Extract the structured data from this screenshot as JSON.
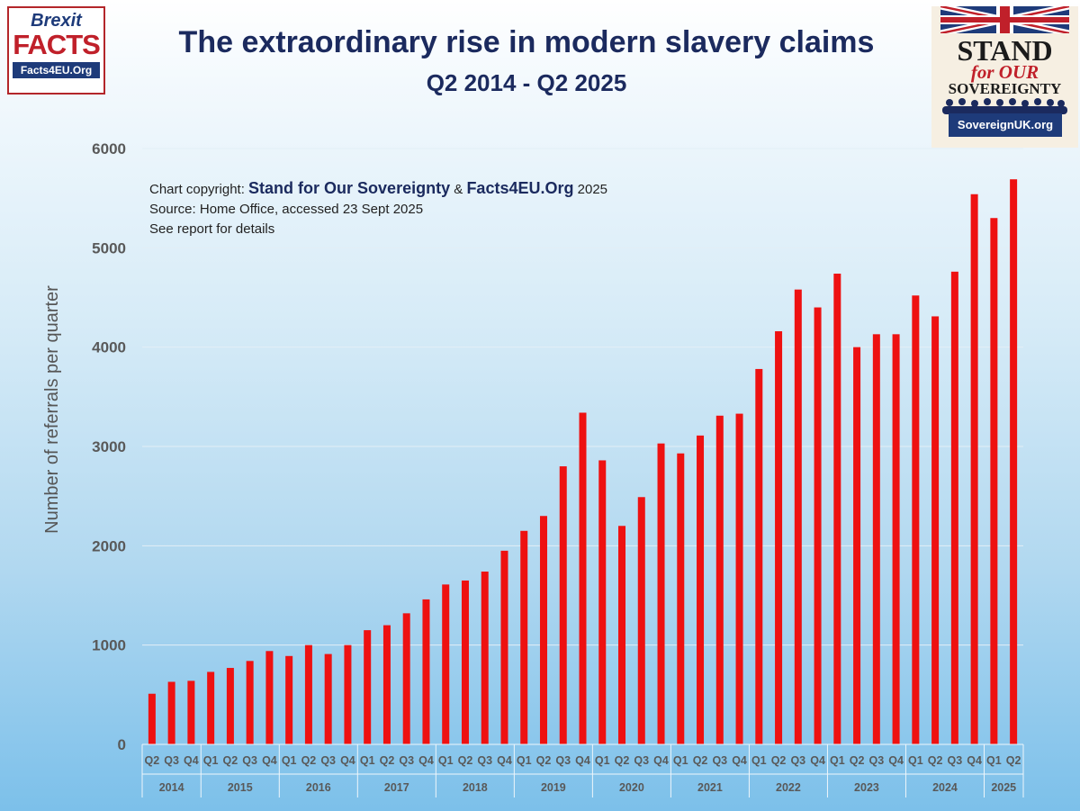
{
  "chart_data": {
    "type": "bar",
    "title": "The extraordinary rise in modern slavery claims",
    "subtitle": "Q2 2014 - Q2 2025",
    "ylabel": "Number of referrals per quarter",
    "xlabel": "",
    "ylim": [
      0,
      6000
    ],
    "yticks": [
      0,
      1000,
      2000,
      3000,
      4000,
      5000,
      6000
    ],
    "grid": true,
    "bar_color": "#ee1111",
    "categories": [
      "Q2",
      "Q3",
      "Q4",
      "Q1",
      "Q2",
      "Q3",
      "Q4",
      "Q1",
      "Q2",
      "Q3",
      "Q4",
      "Q1",
      "Q2",
      "Q3",
      "Q4",
      "Q1",
      "Q2",
      "Q3",
      "Q4",
      "Q1",
      "Q2",
      "Q3",
      "Q4",
      "Q1",
      "Q2",
      "Q3",
      "Q4",
      "Q1",
      "Q2",
      "Q3",
      "Q4",
      "Q1",
      "Q2",
      "Q3",
      "Q4",
      "Q1",
      "Q2",
      "Q3",
      "Q4",
      "Q1",
      "Q2",
      "Q3",
      "Q4",
      "Q1",
      "Q2"
    ],
    "years": [
      {
        "label": "2014",
        "count": 3
      },
      {
        "label": "2015",
        "count": 4
      },
      {
        "label": "2016",
        "count": 4
      },
      {
        "label": "2017",
        "count": 4
      },
      {
        "label": "2018",
        "count": 4
      },
      {
        "label": "2019",
        "count": 4
      },
      {
        "label": "2020",
        "count": 4
      },
      {
        "label": "2021",
        "count": 4
      },
      {
        "label": "2022",
        "count": 4
      },
      {
        "label": "2023",
        "count": 4
      },
      {
        "label": "2024",
        "count": 4
      },
      {
        "label": "2025",
        "count": 2
      }
    ],
    "values": [
      510,
      630,
      640,
      730,
      770,
      840,
      940,
      890,
      1000,
      910,
      1000,
      1150,
      1200,
      1320,
      1460,
      1610,
      1650,
      1740,
      1950,
      2150,
      2300,
      2800,
      3340,
      2860,
      2200,
      2490,
      3030,
      2930,
      3110,
      3310,
      3330,
      3780,
      4160,
      4580,
      4400,
      4740,
      4000,
      4130,
      4130,
      4520,
      4310,
      4760,
      5540,
      5300,
      5690
    ]
  },
  "notes": {
    "copyright_prefix": "Chart copyright: ",
    "org1": "Stand for Our Sovereignty",
    "amp": " & ",
    "org2": "Facts4EU.Org",
    "year": " 2025",
    "source": "Source: Home Office, accessed 23 Sept 2025",
    "see": "See report for details"
  },
  "logo_left": {
    "line1": "Brexit",
    "line2": "FACTS",
    "line3": "Facts4EU.Org"
  },
  "logo_right": {
    "line1": "STAND",
    "line2": "for OUR",
    "line3": "SOVEREIGNTY",
    "line4": "SovereignUK.org"
  }
}
